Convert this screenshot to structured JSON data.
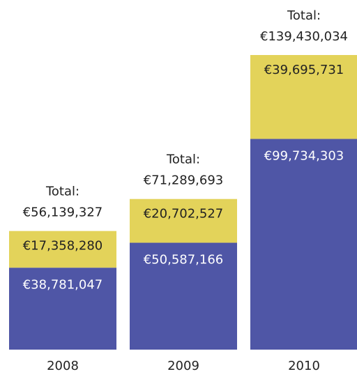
{
  "chart_data": {
    "type": "stacked-bar",
    "categories": [
      "2008",
      "2009",
      "2010"
    ],
    "series": [
      {
        "color": "#4f56a6",
        "text_color": "#ffffff",
        "values": [
          38781047,
          50587166,
          99734303
        ],
        "value_labels": [
          "€38,781,047",
          "€50,587,166",
          "€99,734,303"
        ]
      },
      {
        "color": "#e3d35a",
        "text_color": "#222222",
        "values": [
          17358280,
          20702527,
          39695731
        ],
        "value_labels": [
          "€17,358,280",
          "€20,702,527",
          "€39,695,731"
        ]
      }
    ],
    "total_title": "Total:",
    "totals": [
      56139327,
      71289693,
      139430034
    ],
    "total_labels": [
      "€56,139,327",
      "€71,289,693",
      "€139,430,034"
    ]
  }
}
